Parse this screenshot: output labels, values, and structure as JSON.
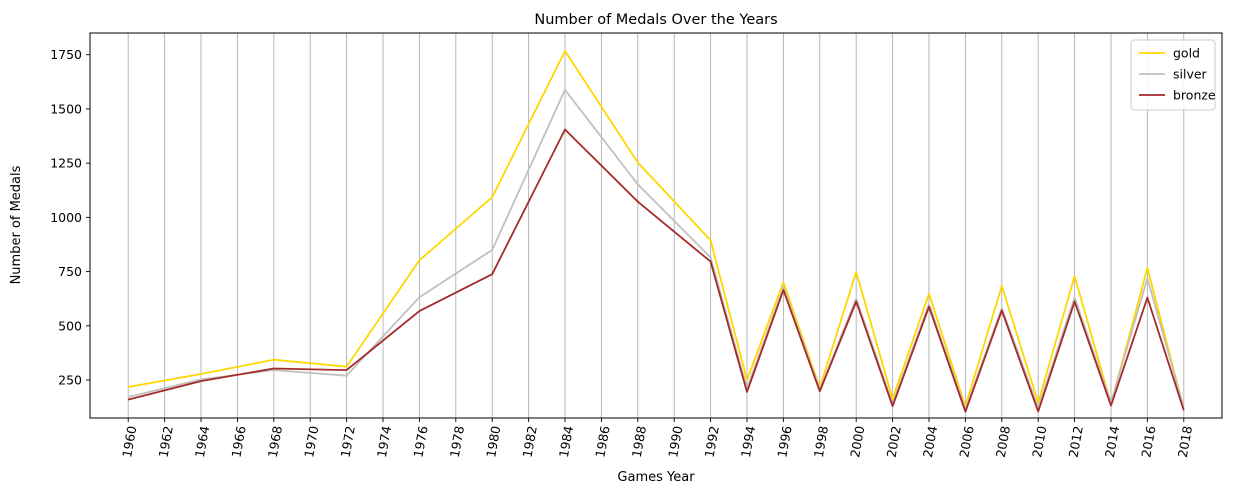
{
  "chart_data": {
    "type": "line",
    "title": "Number of Medals Over the Years",
    "xlabel": "Games Year",
    "ylabel": "Number of Medals",
    "x": [
      1960,
      1964,
      1968,
      1972,
      1976,
      1980,
      1984,
      1988,
      1992,
      1994,
      1996,
      1998,
      2000,
      2002,
      2004,
      2006,
      2008,
      2010,
      2012,
      2014,
      2016,
      2018
    ],
    "xticks": [
      1960,
      1962,
      1964,
      1966,
      1968,
      1970,
      1972,
      1974,
      1976,
      1978,
      1980,
      1982,
      1984,
      1986,
      1988,
      1990,
      1992,
      1994,
      1996,
      1998,
      2000,
      2002,
      2004,
      2006,
      2008,
      2010,
      2012,
      2014,
      2016,
      2018
    ],
    "yticks": [
      250,
      500,
      750,
      1000,
      1250,
      1500,
      1750
    ],
    "xlim": [
      1957.9,
      2020.1
    ],
    "ylim": [
      75,
      1850
    ],
    "grid": "vertical",
    "legend_position": "top-right",
    "series": [
      {
        "name": "gold",
        "color": "#FFD700",
        "values": [
          218,
          278,
          344,
          312,
          802,
          1093,
          1767,
          1253,
          894,
          250,
          701,
          214,
          748,
          162,
          648,
          128,
          684,
          146,
          729,
          140,
          767,
          118
        ]
      },
      {
        "name": "silver",
        "color": "#C0C0C0",
        "values": [
          172,
          253,
          296,
          270,
          632,
          850,
          1588,
          1152,
          815,
          212,
          677,
          205,
          626,
          140,
          600,
          114,
          581,
          122,
          630,
          145,
          720,
          120
        ]
      },
      {
        "name": "bronze",
        "color": "#A52A2A",
        "values": [
          160,
          245,
          303,
          296,
          568,
          738,
          1405,
          1072,
          796,
          195,
          665,
          198,
          612,
          130,
          588,
          104,
          571,
          105,
          612,
          132,
          630,
          110
        ]
      }
    ]
  }
}
